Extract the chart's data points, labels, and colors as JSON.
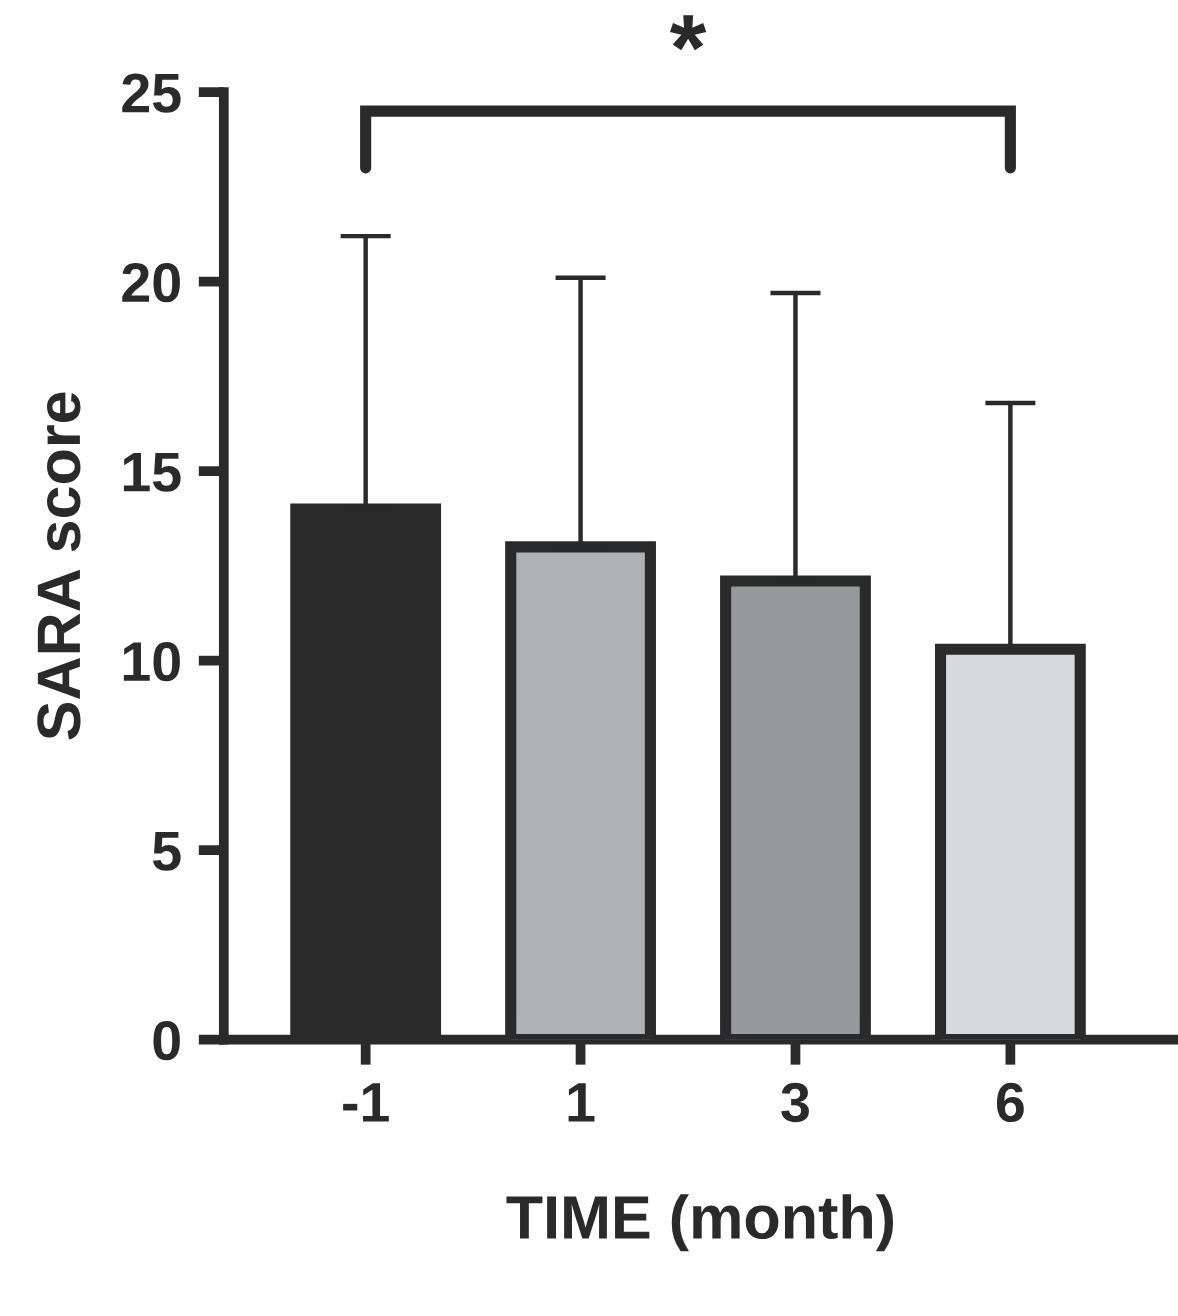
{
  "chart_data": {
    "type": "bar",
    "xlabel": "TIME (month)",
    "ylabel": "SARA score",
    "categories": [
      "-1",
      "1",
      "3",
      "6"
    ],
    "values": [
      14.0,
      13.0,
      12.1,
      10.3
    ],
    "errors": [
      [
        14.0,
        21.2
      ],
      [
        13.0,
        20.1
      ],
      [
        12.1,
        19.7
      ],
      [
        10.3,
        16.8
      ]
    ],
    "colors": [
      "#2b2a2b",
      "#b0b1b3",
      "#97989b",
      "#d9dadb"
    ],
    "ylim": [
      0,
      25
    ],
    "yticks": [
      0,
      5,
      10,
      15,
      20,
      25
    ],
    "annotations": [
      "*"
    ]
  }
}
